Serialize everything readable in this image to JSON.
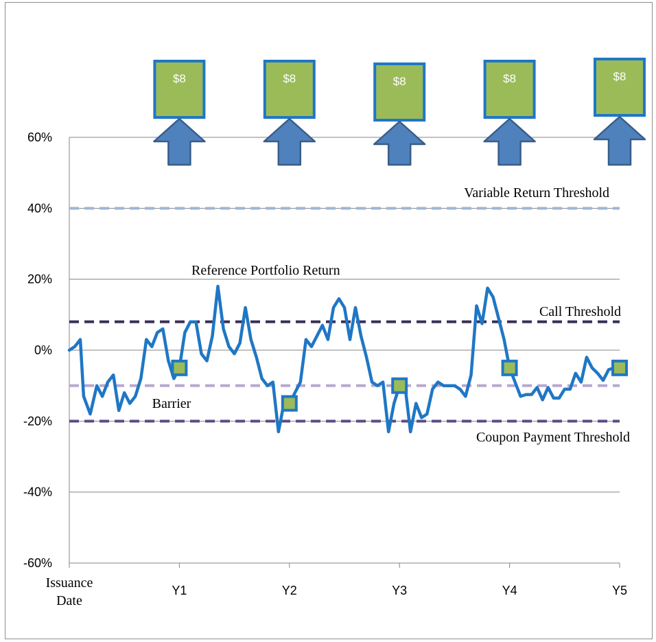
{
  "chart_data": {
    "type": "line",
    "title": "",
    "xlabel": "",
    "ylabel": "",
    "ylim": [
      -60,
      60
    ],
    "y_ticks": [
      "60%",
      "40%",
      "20%",
      "0%",
      "-20%",
      "-40%",
      "-60%"
    ],
    "x_labels": [
      {
        "label": "Issuance Date",
        "x": 0
      },
      {
        "label": "Y1",
        "x": 1
      },
      {
        "label": "Y2",
        "x": 2
      },
      {
        "label": "Y3",
        "x": 3
      },
      {
        "label": "Y4",
        "x": 4
      },
      {
        "label": "Y5",
        "x": 5
      }
    ],
    "grid": true,
    "series": [
      {
        "name": "Reference Portfolio Return",
        "color": "#1f77c4",
        "x": [
          0,
          0.05,
          0.1,
          0.13,
          0.19,
          0.25,
          0.3,
          0.35,
          0.4,
          0.45,
          0.5,
          0.55,
          0.6,
          0.65,
          0.7,
          0.75,
          0.8,
          0.85,
          0.9,
          0.95,
          1.0,
          1.05,
          1.1,
          1.15,
          1.2,
          1.25,
          1.3,
          1.35,
          1.4,
          1.45,
          1.5,
          1.55,
          1.6,
          1.65,
          1.7,
          1.75,
          1.8,
          1.85,
          1.9,
          1.95,
          2.0,
          2.05,
          2.1,
          2.15,
          2.2,
          2.25,
          2.3,
          2.35,
          2.4,
          2.45,
          2.5,
          2.55,
          2.6,
          2.65,
          2.7,
          2.75,
          2.8,
          2.85,
          2.9,
          2.95,
          3.0,
          3.05,
          3.1,
          3.15,
          3.2,
          3.25,
          3.3,
          3.35,
          3.4,
          3.45,
          3.5,
          3.55,
          3.6,
          3.65,
          3.7,
          3.75,
          3.8,
          3.85,
          3.9,
          3.95,
          4.0,
          4.05,
          4.1,
          4.15,
          4.2,
          4.25,
          4.3,
          4.35,
          4.4,
          4.45,
          4.5,
          4.55,
          4.6,
          4.65,
          4.7,
          4.75,
          4.8,
          4.85,
          4.9,
          4.95,
          5.0
        ],
        "values": [
          0,
          1,
          3,
          -13,
          -18,
          -10,
          -13,
          -9,
          -7,
          -17,
          -12,
          -15,
          -13,
          -8,
          3,
          1,
          5,
          6,
          -3,
          -8,
          -5,
          5,
          8,
          8,
          -1,
          -3,
          4,
          18,
          6,
          1,
          -1,
          2,
          12,
          3,
          -2,
          -8,
          -10,
          -9,
          -23,
          -15,
          -15,
          -12,
          -9,
          3,
          1,
          4,
          7,
          3,
          12,
          14.5,
          12,
          3,
          12,
          4,
          -2,
          -9,
          -10,
          -9,
          -23,
          -15,
          -10,
          -10,
          -23,
          -15,
          -19,
          -18,
          -11,
          -9,
          -10,
          -10,
          -10,
          -11,
          -13,
          -7,
          12.5,
          7.5,
          17.5,
          15,
          9,
          3,
          -5,
          -9,
          -13,
          -12.5,
          -12.5,
          -10.5,
          -14,
          -10.5,
          -13.5,
          -13.5,
          -11,
          -11,
          -6.5,
          -9,
          -2,
          -5,
          -6.5,
          -8.5,
          -5.5,
          -5,
          -5
        ]
      }
    ],
    "observation_points": [
      {
        "x": 1,
        "y": -5
      },
      {
        "x": 2,
        "y": -15
      },
      {
        "x": 3,
        "y": -10
      },
      {
        "x": 4,
        "y": -5
      },
      {
        "x": 5,
        "y": -5
      }
    ],
    "thresholds": [
      {
        "label": "Variable Return Threshold",
        "value": 40,
        "color": "#9fb6d9"
      },
      {
        "label": "Call Threshold",
        "value": 8,
        "color": "#3a2d5a"
      },
      {
        "label": "Barrier",
        "value": -10,
        "color": "#b6a8cf"
      },
      {
        "label": "Coupon Payment Threshold",
        "value": -20,
        "color": "#5e4a86"
      }
    ],
    "coupons": [
      {
        "label": "$8",
        "x": 1
      },
      {
        "label": "$8",
        "x": 2
      },
      {
        "label": "$8",
        "x": 3
      },
      {
        "label": "$8",
        "x": 4
      },
      {
        "label": "$8",
        "x": 5
      }
    ],
    "series_label": "Reference Portfolio Return"
  }
}
